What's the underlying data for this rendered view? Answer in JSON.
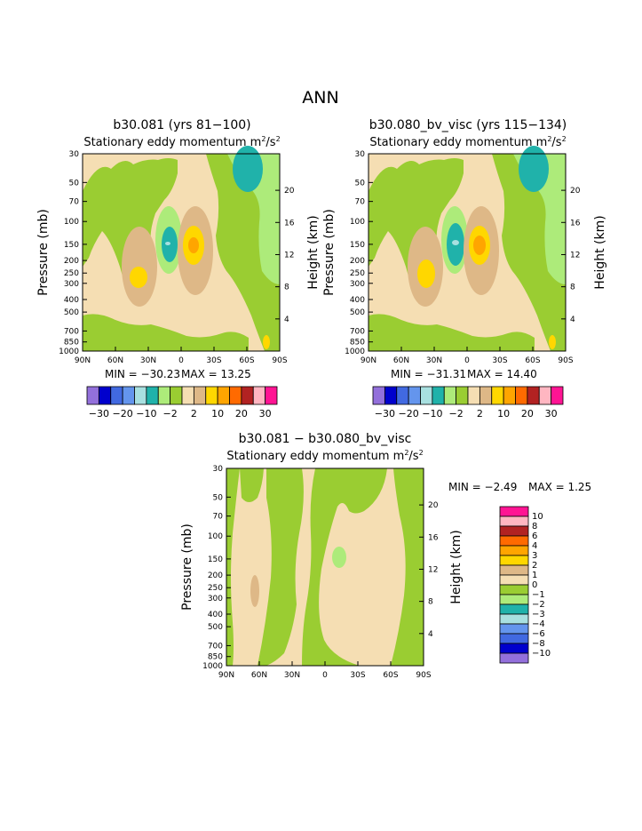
{
  "main_title": "ANN",
  "colors": {
    "cream": "#F5DEB3",
    "light_green": "#ADEB7A",
    "olive_green": "#9ACD32",
    "teal": "#20B2AA",
    "light_cyan": "#A8E0E0",
    "tan": "#DEB887",
    "yellow": "#FFD700",
    "orange": "#FFA500",
    "dark_orange": "#FF6A00",
    "red": "#E03020",
    "dark_red": "#B22222",
    "pink": "#FFB6C1",
    "magenta": "#FF1493",
    "purple": "#9370DB",
    "blue_dark": "#0000CD",
    "blue_mid": "#4169E1",
    "blue_light": "#6495ED"
  },
  "chart_data": [
    {
      "type": "contour",
      "title": "b30.081 (yrs 81−100)",
      "subtitle_prefix": "Stationary eddy momentum  m",
      "subtitle_unit_sup1": "2",
      "subtitle_unit_mid": "/s",
      "subtitle_unit_sup2": "2",
      "ylabel": "Pressure (mb)",
      "y2label": "Height (km)",
      "x_ticks": [
        "90N",
        "60N",
        "30N",
        "0",
        "30S",
        "60S",
        "90S"
      ],
      "y_ticks": [
        "30",
        "50",
        "70",
        "100",
        "150",
        "200",
        "250",
        "300",
        "400",
        "500",
        "700",
        "850",
        "1000"
      ],
      "y2_ticks": [
        "20",
        "16",
        "12",
        "8",
        "4"
      ],
      "min_label": "MIN = −30.23",
      "max_label": "MAX =  13.25",
      "min": -30.23,
      "max": 13.25
    },
    {
      "type": "contour",
      "title": "b30.080_bv_visc (yrs 115−134)",
      "subtitle_prefix": "Stationary eddy momentum  m",
      "subtitle_unit_sup1": "2",
      "subtitle_unit_mid": "/s",
      "subtitle_unit_sup2": "2",
      "ylabel": "Pressure (mb)",
      "y2label": "Height (km)",
      "x_ticks": [
        "90N",
        "60N",
        "30N",
        "0",
        "30S",
        "60S",
        "90S"
      ],
      "y_ticks": [
        "30",
        "50",
        "70",
        "100",
        "150",
        "200",
        "250",
        "300",
        "400",
        "500",
        "700",
        "850",
        "1000"
      ],
      "y2_ticks": [
        "20",
        "16",
        "12",
        "8",
        "4"
      ],
      "min_label": "MIN = −31.31",
      "max_label": "MAX =  14.40",
      "min": -31.31,
      "max": 14.4
    },
    {
      "type": "contour",
      "title": "b30.081 − b30.080_bv_visc",
      "subtitle_prefix": "Stationary eddy momentum  m",
      "subtitle_unit_sup1": "2",
      "subtitle_unit_mid": "/s",
      "subtitle_unit_sup2": "2",
      "ylabel": "Pressure (mb)",
      "y2label": "Height (km)",
      "x_ticks": [
        "90N",
        "60N",
        "30N",
        "0",
        "30S",
        "60S",
        "90S"
      ],
      "y_ticks": [
        "30",
        "50",
        "70",
        "100",
        "150",
        "200",
        "250",
        "300",
        "400",
        "500",
        "700",
        "850",
        "1000"
      ],
      "y2_ticks": [
        "20",
        "16",
        "12",
        "8",
        "4"
      ],
      "min_label": "MIN =  −2.49",
      "max_label": "MAX =   1.25",
      "min": -2.49,
      "max": 1.25
    }
  ],
  "colorbar_top": {
    "labels": [
      "−30",
      "−20",
      "−10",
      "−2",
      "2",
      "10",
      "20",
      "30"
    ],
    "colors": [
      "#9370DB",
      "#0000CD",
      "#4169E1",
      "#6495ED",
      "#A8E0E0",
      "#20B2AA",
      "#ADEB7A",
      "#9ACD32",
      "#F5DEB3",
      "#DEB887",
      "#FFD700",
      "#FFA500",
      "#FF6A00",
      "#B22222",
      "#FFB6C1",
      "#FF1493"
    ]
  },
  "colorbar_bottom": {
    "labels": [
      "10",
      "8",
      "6",
      "4",
      "3",
      "2",
      "1",
      "0",
      "−1",
      "−2",
      "−3",
      "−4",
      "−6",
      "−8",
      "−10"
    ],
    "colors": [
      "#FF1493",
      "#FFB6C1",
      "#B22222",
      "#FF6A00",
      "#FFA500",
      "#FFD700",
      "#DEB887",
      "#F5DEB3",
      "#9ACD32",
      "#ADEB7A",
      "#20B2AA",
      "#A8E0E0",
      "#6495ED",
      "#4169E1",
      "#0000CD",
      "#9370DB"
    ]
  }
}
